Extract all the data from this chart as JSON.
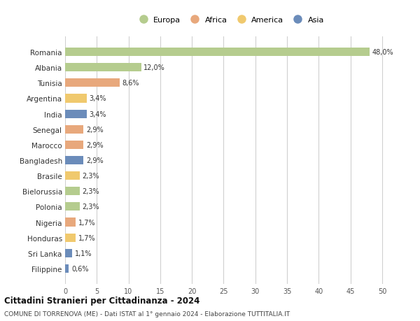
{
  "countries": [
    "Romania",
    "Albania",
    "Tunisia",
    "Argentina",
    "India",
    "Senegal",
    "Marocco",
    "Bangladesh",
    "Brasile",
    "Bielorussia",
    "Polonia",
    "Nigeria",
    "Honduras",
    "Sri Lanka",
    "Filippine"
  ],
  "values": [
    48.0,
    12.0,
    8.6,
    3.4,
    3.4,
    2.9,
    2.9,
    2.9,
    2.3,
    2.3,
    2.3,
    1.7,
    1.7,
    1.1,
    0.6
  ],
  "labels": [
    "48,0%",
    "12,0%",
    "8,6%",
    "3,4%",
    "3,4%",
    "2,9%",
    "2,9%",
    "2,9%",
    "2,3%",
    "2,3%",
    "2,3%",
    "1,7%",
    "1,7%",
    "1,1%",
    "0,6%"
  ],
  "continents": [
    "Europa",
    "Europa",
    "Africa",
    "America",
    "Asia",
    "Africa",
    "Africa",
    "Asia",
    "America",
    "Europa",
    "Europa",
    "Africa",
    "America",
    "Asia",
    "Asia"
  ],
  "continent_colors": {
    "Europa": "#b5cc8e",
    "Africa": "#e8a87c",
    "America": "#f0c96e",
    "Asia": "#6b8cba"
  },
  "legend_order": [
    "Europa",
    "Africa",
    "America",
    "Asia"
  ],
  "xlim": [
    0,
    52
  ],
  "xticks": [
    0,
    5,
    10,
    15,
    20,
    25,
    30,
    35,
    40,
    45,
    50
  ],
  "title": "Cittadini Stranieri per Cittadinanza - 2024",
  "subtitle": "COMUNE DI TORRENOVA (ME) - Dati ISTAT al 1° gennaio 2024 - Elaborazione TUTTITALIA.IT",
  "bg_color": "#ffffff",
  "grid_color": "#d0d0d0",
  "bar_height": 0.55
}
